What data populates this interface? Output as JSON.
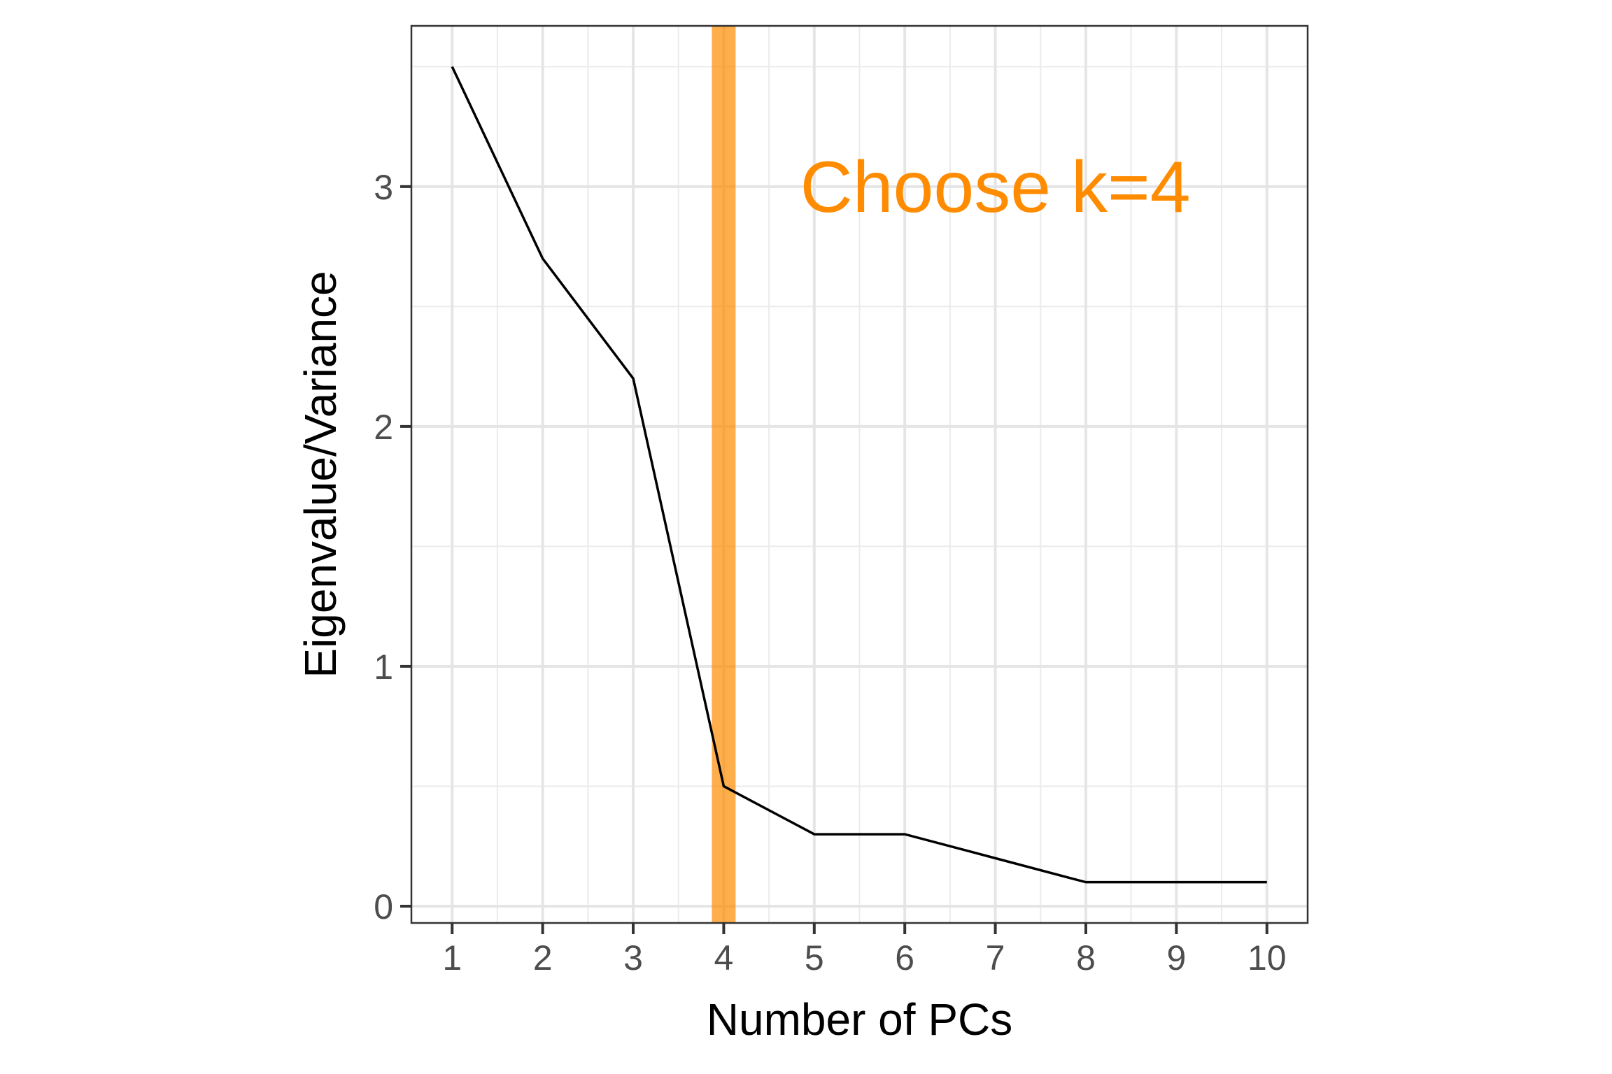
{
  "chart_data": {
    "type": "line",
    "title": "",
    "xlabel": "Number of PCs",
    "ylabel": "Eigenvalue/Variance",
    "x": [
      1,
      2,
      3,
      4,
      5,
      6,
      7,
      8,
      9,
      10
    ],
    "series": [
      {
        "name": "eigenvalue",
        "values": [
          3.5,
          2.7,
          2.2,
          0.5,
          0.3,
          0.3,
          0.2,
          0.1,
          0.1,
          0.1
        ],
        "color": "#000000"
      }
    ],
    "xticks": [
      "1",
      "2",
      "3",
      "4",
      "5",
      "6",
      "7",
      "8",
      "9",
      "10"
    ],
    "yticks": [
      "0",
      "1",
      "2",
      "3"
    ],
    "xlim": [
      0.55,
      10.45
    ],
    "ylim": [
      -0.07,
      3.67
    ],
    "grid": true,
    "vline": {
      "x": 4,
      "color": "#FF8C00"
    },
    "annotation": {
      "text": "Choose k=4",
      "x": 7,
      "y": 3,
      "color": "#FF8C00"
    }
  }
}
